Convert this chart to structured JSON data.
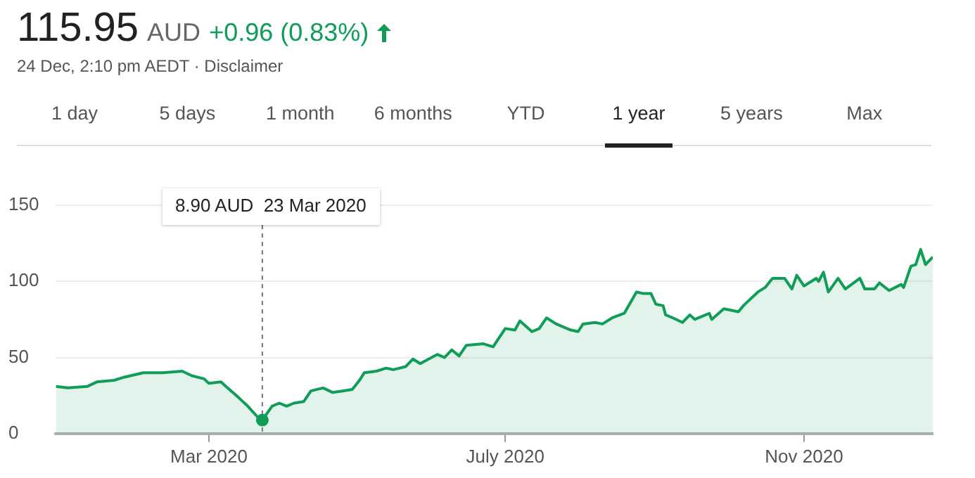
{
  "chart_data": {
    "type": "area",
    "title": "115.95",
    "subtitle": "24 Dec, 2:10 pm AEDT · Disclaimer",
    "annotations": [
      "8.90 AUD  23 Mar 2020",
      "AUD",
      "+0.96 (0.83%)",
      "1 day",
      "5 days",
      "1 month",
      "6 months",
      "YTD",
      "1 year",
      "5 years",
      "Max"
    ],
    "series": [
      {
        "color": "#0f9d58",
        "x": [
          "2019-12-29",
          "2020-01-03",
          "2020-01-11",
          "2020-01-15",
          "2020-01-22",
          "2020-01-26",
          "2020-02-03",
          "2020-02-11",
          "2020-02-19",
          "2020-02-23",
          "2020-02-28",
          "2020-03-01",
          "2020-03-06",
          "2020-03-08",
          "2020-03-13",
          "2020-03-17",
          "2020-03-21",
          "2020-03-23",
          "2020-03-27",
          "2020-03-30",
          "2020-04-02",
          "2020-04-05",
          "2020-04-09",
          "2020-04-12",
          "2020-04-17",
          "2020-04-21",
          "2020-04-25",
          "2020-04-29",
          "2020-04-30",
          "2020-05-02",
          "2020-05-04",
          "2020-05-09",
          "2020-05-13",
          "2020-05-16",
          "2020-05-21",
          "2020-05-24",
          "2020-05-27",
          "2020-06-03",
          "2020-06-06",
          "2020-06-09",
          "2020-06-12",
          "2020-06-15",
          "2020-06-22",
          "2020-06-26",
          "2020-07-01",
          "2020-07-05",
          "2020-07-07",
          "2020-07-12",
          "2020-07-15",
          "2020-07-18",
          "2020-07-22",
          "2020-07-28",
          "2020-07-31",
          "2020-08-02",
          "2020-08-07",
          "2020-08-10",
          "2020-08-14",
          "2020-08-19",
          "2020-08-24",
          "2020-08-27",
          "2020-08-30",
          "2020-09-01",
          "2020-09-04",
          "2020-09-05",
          "2020-09-08",
          "2020-09-12",
          "2020-09-15",
          "2020-09-17",
          "2020-09-23",
          "2020-09-24",
          "2020-09-29",
          "2020-10-05",
          "2020-10-07",
          "2020-10-13",
          "2020-10-16",
          "2020-10-19",
          "2020-10-24",
          "2020-10-27",
          "2020-10-29",
          "2020-11-01",
          "2020-11-06",
          "2020-11-07",
          "2020-11-09",
          "2020-11-11",
          "2020-11-15",
          "2020-11-18",
          "2020-11-24",
          "2020-11-26",
          "2020-11-30",
          "2020-12-02",
          "2020-12-06",
          "2020-12-11",
          "2020-12-12",
          "2020-12-15",
          "2020-12-17",
          "2020-12-19",
          "2020-12-21",
          "2020-12-24"
        ],
        "values": [
          31,
          30,
          31,
          34,
          35,
          37,
          40,
          40,
          41,
          38,
          36,
          33,
          34,
          31,
          24,
          18,
          11,
          8.9,
          18,
          20,
          18,
          20,
          21,
          28,
          30,
          27,
          28,
          29,
          31,
          35,
          40,
          41,
          43,
          42,
          44,
          49,
          46,
          52,
          50,
          55,
          51,
          58,
          59,
          57,
          69,
          68,
          74,
          67,
          69,
          76,
          72,
          68,
          67,
          72,
          73,
          72,
          76,
          79,
          93,
          92,
          92,
          85,
          84,
          78,
          76,
          73,
          78,
          75,
          79,
          75,
          82,
          80,
          84,
          93,
          96,
          102,
          102,
          95,
          104,
          97,
          102,
          100,
          106,
          93,
          102,
          95,
          102,
          95,
          95,
          99,
          94,
          98,
          96,
          110,
          111,
          121,
          111,
          115.95
        ]
      }
    ],
    "xlim": [
      "2019-12-29",
      "2020-12-24"
    ],
    "xticks": [
      {
        "value": "2020-03-01",
        "label": "Mar 2020"
      },
      {
        "value": "2020-07-01",
        "label": "July 2020"
      },
      {
        "value": "2020-11-01",
        "label": "Nov 2020"
      }
    ],
    "ylim": [
      0,
      150
    ],
    "yticks": [
      0,
      50,
      100,
      150
    ],
    "grid": "y",
    "legend": false,
    "marker": "none",
    "ref_lines": [
      {
        "axis": "x",
        "value": "2020-03-23",
        "line_style": "dashed",
        "color": "#757575"
      }
    ]
  }
}
